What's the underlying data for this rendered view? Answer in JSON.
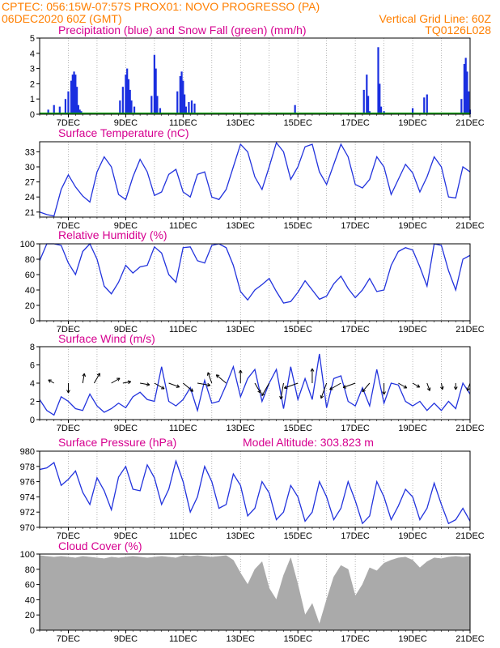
{
  "header": {
    "line1_left": "CPTEC:   056:15W-07:57S   PROX01: NOVO PROGRESSO (PA)",
    "line2_left": "06DEC2020 60Z (GMT)",
    "line2_right": "Vertical Grid Line: 60Z",
    "line3_right": "TQ0126L028"
  },
  "colors": {
    "header": "#ff7f00",
    "title": "#d6008f",
    "precip": "#1a2fe0",
    "snow": "#00a000",
    "line": "#2233dd",
    "cloud": "#aaaaaa"
  },
  "x_ticks": [
    "7DEC",
    "9DEC",
    "11DEC",
    "13DEC",
    "15DEC",
    "17DEC",
    "19DEC",
    "21DEC"
  ],
  "panels": [
    {
      "id": "precip",
      "title": "Precipitation (blue) and Snow Fall (green) (mm/h)",
      "yticks": [
        "0",
        "1",
        "2",
        "3",
        "4",
        "5"
      ],
      "chart_data": {
        "type": "bar",
        "xlabel": "",
        "ylabel": "",
        "ylim": [
          0,
          5
        ],
        "series": [
          {
            "name": "Precipitation",
            "x_days": [
              6.3,
              6.5,
              6.7,
              6.9,
              7.0,
              7.1,
              7.15,
              7.2,
              7.25,
              7.3,
              7.35,
              7.4,
              7.45,
              8.8,
              8.9,
              9.0,
              9.05,
              9.1,
              9.15,
              9.2,
              9.3,
              9.9,
              10.0,
              10.05,
              10.1,
              10.2,
              10.8,
              10.9,
              10.95,
              11.0,
              11.05,
              11.1,
              11.2,
              11.3,
              11.4,
              14.9,
              17.3,
              17.4,
              17.45,
              17.5,
              17.6,
              17.8,
              17.85,
              17.9,
              18.0,
              19.0,
              19.4,
              19.5,
              20.7,
              20.8,
              20.85,
              20.9,
              20.95,
              21.0
            ],
            "values": [
              0.3,
              0.6,
              0.5,
              1.0,
              1.5,
              2.2,
              2.6,
              2.8,
              2.6,
              1.8,
              0.6,
              0.3,
              0.2,
              0.9,
              1.8,
              2.6,
              3.0,
              2.3,
              1.6,
              0.9,
              0.5,
              1.2,
              3.9,
              3.0,
              1.2,
              0.4,
              1.5,
              2.5,
              2.8,
              2.2,
              1.3,
              0.5,
              0.8,
              0.9,
              0.7,
              0.6,
              1.6,
              2.6,
              1.2,
              0.2,
              0.1,
              4.4,
              2.0,
              0.5,
              0.2,
              0.4,
              1.1,
              1.3,
              1.0,
              3.3,
              3.7,
              2.8,
              1.5,
              0.3
            ]
          },
          {
            "name": "Snow Fall",
            "x_days": [
              6.0,
              21.0
            ],
            "values": [
              0,
              0
            ]
          }
        ]
      }
    },
    {
      "id": "temp",
      "title": "Surface Temperature (nC)",
      "yticks": [
        "21",
        "24",
        "27",
        "30",
        "33"
      ],
      "chart_data": {
        "type": "line",
        "ylim": [
          20,
          35
        ],
        "x_days": [
          6.0,
          6.25,
          6.5,
          6.75,
          7.0,
          7.25,
          7.5,
          7.75,
          8.0,
          8.25,
          8.5,
          8.75,
          9.0,
          9.25,
          9.5,
          9.75,
          10.0,
          10.25,
          10.5,
          10.75,
          11.0,
          11.25,
          11.5,
          11.75,
          12.0,
          12.25,
          12.5,
          12.75,
          13.0,
          13.25,
          13.5,
          13.75,
          14.0,
          14.25,
          14.5,
          14.75,
          15.0,
          15.25,
          15.5,
          15.75,
          16.0,
          16.25,
          16.5,
          16.75,
          17.0,
          17.25,
          17.5,
          17.75,
          18.0,
          18.25,
          18.5,
          18.75,
          19.0,
          19.25,
          19.5,
          19.75,
          20.0,
          20.25,
          20.5,
          20.75,
          21.0
        ],
        "series": [
          {
            "values": [
              21.0,
              20.5,
              20.2,
              25.5,
              28.4,
              26.0,
              24.2,
              23.0,
              29.0,
              32.0,
              30.0,
              24.5,
              23.5,
              28.0,
              31.5,
              29.0,
              24.3,
              25.0,
              28.5,
              29.5,
              25.0,
              24.0,
              28.5,
              29.0,
              24.0,
              23.5,
              25.5,
              30.0,
              34.5,
              33.0,
              28.0,
              25.5,
              30.0,
              34.8,
              33.0,
              27.5,
              30.0,
              34.0,
              34.5,
              29.0,
              26.5,
              30.5,
              34.5,
              32.0,
              26.5,
              25.8,
              27.5,
              32.0,
              30.0,
              24.5,
              27.5,
              30.5,
              28.8,
              25.0,
              28.0,
              32.0,
              30.0,
              24.0,
              23.8,
              30.0,
              29.0
            ]
          }
        ]
      }
    },
    {
      "id": "rh",
      "title": "Relative Humidity (%)",
      "yticks": [
        "0",
        "20",
        "40",
        "60",
        "80",
        "100"
      ],
      "chart_data": {
        "type": "line",
        "ylim": [
          0,
          100
        ],
        "x_days": [
          6.0,
          6.25,
          6.5,
          6.75,
          7.0,
          7.25,
          7.5,
          7.75,
          8.0,
          8.25,
          8.5,
          8.75,
          9.0,
          9.25,
          9.5,
          9.75,
          10.0,
          10.25,
          10.5,
          10.75,
          11.0,
          11.25,
          11.5,
          11.75,
          12.0,
          12.25,
          12.5,
          12.75,
          13.0,
          13.25,
          13.5,
          13.75,
          14.0,
          14.25,
          14.5,
          14.75,
          15.0,
          15.25,
          15.5,
          15.75,
          16.0,
          16.25,
          16.5,
          16.75,
          17.0,
          17.25,
          17.5,
          17.75,
          18.0,
          18.25,
          18.5,
          18.75,
          19.0,
          19.25,
          19.5,
          19.75,
          20.0,
          20.25,
          20.5,
          20.75,
          21.0
        ],
        "series": [
          {
            "values": [
              78,
              100,
              100,
              98,
              75,
              60,
              90,
              100,
              80,
              45,
              35,
              50,
              72,
              62,
              70,
              72,
              96,
              88,
              60,
              50,
              95,
              96,
              78,
              75,
              98,
              100,
              95,
              72,
              38,
              27,
              40,
              47,
              55,
              38,
              23,
              25,
              37,
              52,
              40,
              28,
              32,
              48,
              58,
              42,
              30,
              40,
              55,
              38,
              40,
              72,
              90,
              95,
              92,
              70,
              45,
              100,
              98,
              65,
              40,
              80,
              85
            ]
          }
        ]
      }
    },
    {
      "id": "wind",
      "title": "Surface Wind (m/s)",
      "yticks": [
        "0",
        "2",
        "4",
        "6",
        "8"
      ],
      "chart_data": {
        "type": "line",
        "ylim": [
          0,
          8
        ],
        "x_days": [
          6.0,
          6.25,
          6.5,
          6.75,
          7.0,
          7.25,
          7.5,
          7.75,
          8.0,
          8.25,
          8.5,
          8.75,
          9.0,
          9.25,
          9.5,
          9.75,
          10.0,
          10.25,
          10.5,
          10.75,
          11.0,
          11.25,
          11.5,
          11.75,
          12.0,
          12.25,
          12.5,
          12.75,
          13.0,
          13.25,
          13.5,
          13.75,
          14.0,
          14.25,
          14.5,
          14.75,
          15.0,
          15.25,
          15.5,
          15.75,
          16.0,
          16.25,
          16.5,
          16.75,
          17.0,
          17.25,
          17.5,
          17.75,
          18.0,
          18.25,
          18.5,
          18.75,
          19.0,
          19.25,
          19.5,
          19.75,
          20.0,
          20.25,
          20.5,
          20.75,
          21.0
        ],
        "series": [
          {
            "values": [
              2.2,
              1.0,
              0.5,
              2.5,
              2.0,
              1.2,
              1.0,
              2.8,
              1.5,
              0.8,
              1.2,
              1.8,
              1.3,
              2.5,
              3.0,
              2.2,
              2.0,
              5.8,
              2.0,
              1.5,
              2.2,
              3.5,
              1.0,
              4.3,
              1.8,
              2.0,
              3.8,
              5.8,
              2.5,
              4.5,
              5.5,
              2.0,
              4.0,
              5.5,
              1.2,
              5.8,
              2.2,
              4.5,
              2.2,
              7.2,
              1.3,
              4.5,
              4.8,
              2.0,
              1.5,
              3.5,
              1.5,
              5.5,
              1.8,
              4.0,
              3.8,
              2.0,
              1.5,
              2.0,
              1.0,
              1.8,
              1.0,
              2.0,
              1.2,
              4.0,
              2.8
            ]
          }
        ],
        "arrow_days": [
          6.5,
          7.0,
          7.5,
          7.9,
          8.5,
          8.9,
          9.5,
          10.0,
          10.5,
          11.0,
          11.5,
          12.0,
          12.5,
          13.0,
          13.5,
          14.0,
          14.5,
          15.0,
          15.5,
          16.0,
          16.5,
          17.0,
          17.5,
          18.0,
          18.5,
          19.0,
          19.5,
          20.0,
          20.5,
          21.0
        ],
        "arrow_dir_deg": [
          150,
          270,
          80,
          60,
          30,
          10,
          350,
          330,
          340,
          320,
          350,
          110,
          140,
          90,
          300,
          240,
          260,
          200,
          90,
          250,
          210,
          200,
          230,
          270,
          330,
          330,
          290,
          280,
          270,
          250
        ],
        "arrow_speed": [
          1.0,
          2.0,
          2.0,
          2.5,
          2.0,
          1.5,
          2.0,
          2.5,
          2.5,
          3.0,
          3.0,
          2.5,
          3.0,
          3.0,
          2.5,
          3.5,
          4.0,
          3.5,
          3.5,
          4.0,
          3.0,
          3.0,
          2.5,
          2.5,
          2.0,
          1.5,
          1.5,
          1.0,
          1.0,
          1.5
        ]
      }
    },
    {
      "id": "pres",
      "title": "Surface Pressure (hPa)",
      "subtitle": "Model Altitude: 303.823 m",
      "yticks": [
        "970",
        "972",
        "974",
        "976",
        "978",
        "980"
      ],
      "chart_data": {
        "type": "line",
        "ylim": [
          970,
          980
        ],
        "x_days": [
          6.0,
          6.25,
          6.5,
          6.75,
          7.0,
          7.25,
          7.5,
          7.75,
          8.0,
          8.25,
          8.5,
          8.75,
          9.0,
          9.25,
          9.5,
          9.75,
          10.0,
          10.25,
          10.5,
          10.75,
          11.0,
          11.25,
          11.5,
          11.75,
          12.0,
          12.25,
          12.5,
          12.75,
          13.0,
          13.25,
          13.5,
          13.75,
          14.0,
          14.25,
          14.5,
          14.75,
          15.0,
          15.25,
          15.5,
          15.75,
          16.0,
          16.25,
          16.5,
          16.75,
          17.0,
          17.25,
          17.5,
          17.75,
          18.0,
          18.25,
          18.5,
          18.75,
          19.0,
          19.25,
          19.5,
          19.75,
          20.0,
          20.25,
          20.5,
          20.75,
          21.0
        ],
        "series": [
          {
            "values": [
              977.6,
              977.8,
              978.5,
              975.5,
              976.3,
              977.4,
              974.6,
              973.0,
              976.5,
              974.8,
              972.3,
              976.6,
              978.0,
              975.0,
              974.8,
              978.2,
              976.5,
              973.0,
              975.0,
              978.7,
              976.0,
              972.0,
              974.0,
              978.0,
              976.0,
              972.5,
              973.0,
              977.0,
              975.5,
              971.5,
              972.5,
              976.0,
              974.5,
              971.0,
              972.0,
              975.5,
              974.0,
              970.8,
              972.0,
              976.0,
              974.0,
              971.0,
              972.5,
              976.0,
              973.5,
              970.5,
              971.5,
              976.0,
              974.0,
              971.0,
              972.8,
              975.0,
              974.0,
              971.0,
              972.5,
              975.8,
              973.0,
              970.5,
              971.0,
              972.5,
              970.8
            ]
          }
        ]
      }
    },
    {
      "id": "cloud",
      "title": "Cloud Cover (%)",
      "yticks": [
        "0",
        "20",
        "40",
        "60",
        "80",
        "100"
      ],
      "chart_data": {
        "type": "area",
        "ylim": [
          0,
          100
        ],
        "x_days": [
          6.0,
          6.25,
          6.5,
          6.75,
          7.0,
          7.25,
          7.5,
          7.75,
          8.0,
          8.25,
          8.5,
          8.75,
          9.0,
          9.25,
          9.5,
          9.75,
          10.0,
          10.25,
          10.5,
          10.75,
          11.0,
          11.25,
          11.5,
          11.75,
          12.0,
          12.25,
          12.5,
          12.75,
          13.0,
          13.25,
          13.5,
          13.75,
          14.0,
          14.25,
          14.5,
          14.75,
          15.0,
          15.25,
          15.5,
          15.75,
          16.0,
          16.25,
          16.5,
          16.75,
          17.0,
          17.25,
          17.5,
          17.75,
          18.0,
          18.25,
          18.5,
          18.75,
          19.0,
          19.25,
          19.5,
          19.75,
          20.0,
          20.25,
          20.5,
          20.75,
          21.0
        ],
        "series": [
          {
            "values": [
              98,
              97,
              96,
              97,
              96,
              95,
              97,
              96,
              95,
              94,
              96,
              95,
              96,
              97,
              96,
              95,
              96,
              97,
              96,
              95,
              98,
              97,
              98,
              97,
              96,
              97,
              98,
              92,
              75,
              60,
              80,
              90,
              55,
              40,
              72,
              95,
              60,
              20,
              35,
              8,
              40,
              70,
              85,
              80,
              45,
              60,
              82,
              78,
              88,
              92,
              95,
              96,
              92,
              82,
              90,
              95,
              94,
              96,
              97,
              96,
              97
            ]
          }
        ]
      }
    }
  ]
}
